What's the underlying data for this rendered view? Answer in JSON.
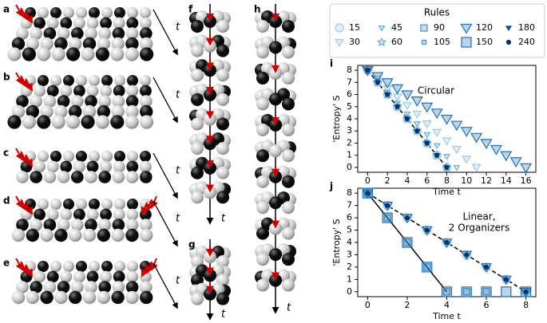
{
  "illustrations": [
    {
      "label": "a",
      "time_label": "t"
    },
    {
      "label": "b",
      "time_label": "t"
    },
    {
      "label": "c",
      "time_label": "t"
    },
    {
      "label": "d",
      "time_label": "t"
    },
    {
      "label": "e",
      "time_label": "t"
    },
    {
      "label": "f",
      "time_label": "t"
    },
    {
      "label": "g",
      "time_label": "t"
    },
    {
      "label": "h",
      "time_label": "t"
    }
  ],
  "chart_data": [
    {
      "type": "scatter",
      "panel_label": "i",
      "annotation": [
        "Circular"
      ],
      "xlabel": "Time t",
      "ylabel": "'Entropy' S",
      "xlim": [
        -1,
        17
      ],
      "ylim": [
        -0.4,
        8.4
      ],
      "xticks": [
        0,
        2,
        4,
        6,
        8,
        10,
        12,
        14,
        16
      ],
      "yticks": [
        0,
        1,
        2,
        3,
        4,
        5,
        6,
        7,
        8
      ],
      "legend_title": "Rules",
      "series": [
        {
          "name": "15",
          "color": "#9ecae1",
          "marker": "circle",
          "size": 5,
          "filled": false,
          "x": [
            0,
            1,
            2,
            3,
            4,
            5,
            6,
            7,
            8
          ],
          "values": [
            8,
            7,
            6,
            5,
            4,
            3,
            2,
            1,
            0
          ]
        },
        {
          "name": "30",
          "color": "#9ecae1",
          "marker": "triangle-down",
          "size": 5,
          "filled": false,
          "x": [
            0,
            1,
            2,
            3,
            4,
            5,
            6,
            7,
            8,
            9,
            10,
            11
          ],
          "values": [
            8,
            7.3,
            6.5,
            5.8,
            5.1,
            4.4,
            3.6,
            2.9,
            2.2,
            1.5,
            0.7,
            0
          ]
        },
        {
          "name": "45",
          "color": "#6baed6",
          "marker": "triangle-down",
          "size": 3.5,
          "filled": false,
          "x": [
            0,
            1,
            2,
            3,
            4,
            5,
            6,
            7,
            8,
            9
          ],
          "values": [
            8,
            7.1,
            6.2,
            5.3,
            4.4,
            3.6,
            2.7,
            1.8,
            0.9,
            0
          ]
        },
        {
          "name": "60",
          "color": "#6baed6",
          "marker": "star",
          "size": 5,
          "filled": false,
          "x": [
            0,
            1,
            2,
            3,
            4,
            5,
            6,
            7,
            8
          ],
          "values": [
            8,
            7,
            6,
            5,
            4,
            3,
            2,
            1,
            0
          ]
        },
        {
          "name": "90",
          "color": "#4292c6",
          "marker": "square",
          "size": 4,
          "filled": false,
          "x": [],
          "values": []
        },
        {
          "name": "105",
          "color": "#4292c6",
          "marker": "square",
          "size": 2.5,
          "filled": false,
          "x": [],
          "values": []
        },
        {
          "name": "120",
          "color": "#2171b5",
          "marker": "triangle-down",
          "size": 6.5,
          "filled": false,
          "x": [
            0,
            1,
            2,
            3,
            4,
            5,
            6,
            7,
            8,
            9,
            10,
            11,
            12,
            13,
            14,
            15,
            16
          ],
          "values": [
            8,
            7.5,
            7,
            6.5,
            6,
            5.5,
            5,
            4.5,
            4,
            3.5,
            3,
            2.5,
            2,
            1.5,
            1,
            0.5,
            0
          ]
        },
        {
          "name": "150",
          "color": "#2171b5",
          "marker": "square",
          "size": 6,
          "filled": false,
          "x": [],
          "values": []
        },
        {
          "name": "180",
          "color": "#08519c",
          "marker": "triangle-down",
          "size": 3,
          "filled": true,
          "x": [
            0,
            1,
            2,
            3,
            4,
            5,
            6,
            7,
            8
          ],
          "values": [
            8,
            7,
            6,
            5,
            4,
            3,
            2,
            1,
            0
          ]
        },
        {
          "name": "240",
          "color": "#08306b",
          "marker": "circle",
          "size": 2.5,
          "filled": true,
          "x": [
            0,
            1,
            2,
            3,
            4,
            5,
            6,
            7,
            8
          ],
          "values": [
            8,
            7,
            6,
            5,
            4,
            3,
            2,
            1,
            0
          ]
        }
      ],
      "fit_lines": [
        {
          "style": "dashed",
          "x": [
            0,
            8
          ],
          "values": [
            8,
            0
          ]
        }
      ]
    },
    {
      "type": "scatter",
      "panel_label": "j",
      "annotation": [
        "Linear,",
        "2 Organizers"
      ],
      "xlabel": "Time t",
      "ylabel": "'Entropy' S",
      "xlim": [
        -0.5,
        8.5
      ],
      "ylim": [
        -0.4,
        8.4
      ],
      "xticks": [
        0,
        2,
        4,
        6,
        8
      ],
      "yticks": [
        0,
        1,
        2,
        3,
        4,
        5,
        6,
        7,
        8
      ],
      "series": [
        {
          "name": "15",
          "color": "#9ecae1",
          "marker": "circle",
          "size": 5,
          "filled": false,
          "x": [
            0,
            1,
            2,
            3,
            4,
            5,
            6,
            7,
            8
          ],
          "values": [
            8,
            7,
            6,
            5,
            4,
            3,
            2,
            1,
            0
          ]
        },
        {
          "name": "90",
          "color": "#4292c6",
          "marker": "square",
          "size": 4,
          "filled": false,
          "x": [
            0,
            1,
            2,
            3,
            4,
            5,
            6
          ],
          "values": [
            8,
            6,
            4,
            2,
            0,
            0,
            0
          ]
        },
        {
          "name": "120",
          "color": "#2171b5",
          "marker": "triangle-down",
          "size": 6,
          "filled": false,
          "x": [
            0,
            1,
            2,
            3,
            4,
            5,
            6,
            7,
            8
          ],
          "values": [
            8,
            7,
            6,
            5,
            4,
            3,
            2,
            1,
            0
          ]
        },
        {
          "name": "150",
          "color": "#2171b5",
          "marker": "square",
          "size": 6,
          "filled": false,
          "x": [
            0,
            1,
            2,
            3,
            4,
            5,
            6,
            7,
            8
          ],
          "values": [
            8,
            6,
            4,
            2,
            0,
            0,
            0,
            0,
            0
          ]
        },
        {
          "name": "240",
          "color": "#08306b",
          "marker": "circle",
          "size": 2.5,
          "filled": true,
          "x": [
            0,
            1,
            2,
            3,
            4,
            5,
            6,
            7,
            8
          ],
          "values": [
            8,
            7,
            6,
            5,
            4,
            3,
            2,
            1,
            0
          ]
        }
      ],
      "fit_lines": [
        {
          "style": "solid",
          "x": [
            0,
            4
          ],
          "values": [
            8,
            0
          ]
        },
        {
          "style": "dashed",
          "x": [
            0,
            8
          ],
          "values": [
            8,
            0
          ]
        }
      ]
    }
  ]
}
